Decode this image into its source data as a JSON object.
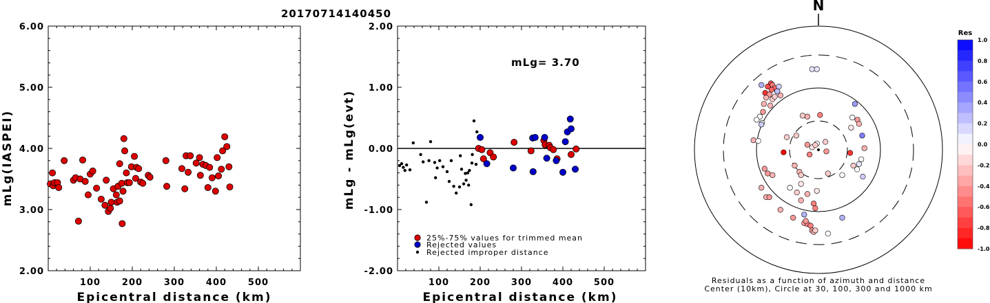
{
  "title": "20170714140450",
  "colors": {
    "red": "#dd0000",
    "blue": "#0000cc",
    "black": "#000000"
  },
  "chart_data": [
    {
      "type": "scatter",
      "xlabel": "Epicentral distance (km)",
      "ylabel": "mLg(IASPEI)",
      "xlim": [
        0,
        600
      ],
      "ylim": [
        2.0,
        6.0
      ],
      "xticks": [
        "100",
        "200",
        "300",
        "400",
        "500"
      ],
      "yticks": [
        "2.00",
        "3.00",
        "4.00",
        "5.00",
        "6.00"
      ],
      "series": [
        {
          "color": "red",
          "points": [
            [
              5,
              3.42
            ],
            [
              10,
              3.6
            ],
            [
              12,
              3.39
            ],
            [
              15,
              3.44
            ],
            [
              22,
              3.44
            ],
            [
              25,
              3.36
            ],
            [
              38,
              3.8
            ],
            [
              60,
              3.48
            ],
            [
              65,
              3.52
            ],
            [
              72,
              2.81
            ],
            [
              76,
              3.5
            ],
            [
              82,
              3.81
            ],
            [
              88,
              3.46
            ],
            [
              95,
              3.24
            ],
            [
              100,
              3.58
            ],
            [
              106,
              3.63
            ],
            [
              115,
              3.35
            ],
            [
              126,
              3.17
            ],
            [
              135,
              3.07
            ],
            [
              138,
              3.48
            ],
            [
              143,
              2.97
            ],
            [
              148,
              3.02
            ],
            [
              150,
              3.12
            ],
            [
              155,
              3.34
            ],
            [
              162,
              3.24
            ],
            [
              164,
              3.12
            ],
            [
              166,
              3.38
            ],
            [
              170,
              3.75
            ],
            [
              170,
              3.14
            ],
            [
              175,
              3.43
            ],
            [
              176,
              2.77
            ],
            [
              178,
              3.3
            ],
            [
              180,
              4.16
            ],
            [
              182,
              3.96
            ],
            [
              186,
              3.6
            ],
            [
              188,
              3.44
            ],
            [
              193,
              3.44
            ],
            [
              198,
              3.7
            ],
            [
              205,
              3.87
            ],
            [
              208,
              3.51
            ],
            [
              210,
              3.69
            ],
            [
              215,
              3.67
            ],
            [
              220,
              3.45
            ],
            [
              225,
              3.43
            ],
            [
              238,
              3.56
            ],
            [
              242,
              3.53
            ],
            [
              280,
              3.8
            ],
            [
              282,
              3.38
            ],
            [
              318,
              3.67
            ],
            [
              325,
              3.34
            ],
            [
              328,
              3.88
            ],
            [
              333,
              3.61
            ],
            [
              338,
              3.88
            ],
            [
              352,
              3.76
            ],
            [
              360,
              3.85
            ],
            [
              362,
              3.56
            ],
            [
              368,
              3.74
            ],
            [
              375,
              3.72
            ],
            [
              380,
              3.36
            ],
            [
              384,
              3.69
            ],
            [
              390,
              3.52
            ],
            [
              398,
              3.3
            ],
            [
              402,
              3.85
            ],
            [
              405,
              3.55
            ],
            [
              412,
              3.66
            ],
            [
              415,
              3.96
            ],
            [
              420,
              4.19
            ],
            [
              425,
              4.03
            ],
            [
              430,
              3.7
            ],
            [
              432,
              3.37
            ]
          ]
        }
      ]
    },
    {
      "type": "scatter",
      "xlabel": "Epicentral distance (km)",
      "ylabel": "mLg - mLg(evt)",
      "xlim": [
        0,
        600
      ],
      "ylim": [
        -2.0,
        2.0
      ],
      "xticks": [
        "100",
        "200",
        "300",
        "400",
        "500"
      ],
      "yticks": [
        "-2.00",
        "-1.00",
        "0.00",
        "1.00",
        "2.00"
      ],
      "annotation": "mLg= 3.70",
      "legend": [
        "25%-75% values for trimmed mean",
        "Rejected values",
        "Rejected improper distance"
      ],
      "legend_position": "bottom-center",
      "series": [
        {
          "name": "25%-75% values for trimmed mean",
          "color": "red",
          "points": [
            [
              196,
              0.0
            ],
            [
              204,
              -0.02
            ],
            [
              208,
              -0.17
            ],
            [
              224,
              -0.07
            ],
            [
              232,
              -0.14
            ],
            [
              282,
              0.1
            ],
            [
              323,
              -0.04
            ],
            [
              354,
              0.13
            ],
            [
              357,
              0.06
            ],
            [
              367,
              0.05
            ],
            [
              370,
              0.01
            ],
            [
              377,
              -0.02
            ],
            [
              386,
              -0.17
            ],
            [
              420,
              -0.1
            ],
            [
              432,
              -0.01
            ]
          ]
        },
        {
          "name": "Rejected values",
          "color": "blue",
          "points": [
            [
              200,
              0.18
            ],
            [
              216,
              -0.25
            ],
            [
              280,
              -0.32
            ],
            [
              327,
              0.17
            ],
            [
              328,
              -0.38
            ],
            [
              333,
              0.18
            ],
            [
              356,
              0.18
            ],
            [
              361,
              -0.16
            ],
            [
              384,
              -0.2
            ],
            [
              400,
              -0.39
            ],
            [
              406,
              0.11
            ],
            [
              411,
              0.27
            ],
            [
              418,
              0.48
            ],
            [
              420,
              0.32
            ],
            [
              430,
              -0.34
            ]
          ]
        },
        {
          "name": "Rejected improper distance",
          "color": "black",
          "points": [
            [
              5,
              -0.28
            ],
            [
              10,
              -0.25
            ],
            [
              14,
              -0.31
            ],
            [
              18,
              -0.36
            ],
            [
              22,
              -0.27
            ],
            [
              30,
              -0.35
            ],
            [
              38,
              0.09
            ],
            [
              56,
              -0.1
            ],
            [
              62,
              -0.22
            ],
            [
              70,
              -0.88
            ],
            [
              76,
              -0.2
            ],
            [
              80,
              0.11
            ],
            [
              90,
              -0.23
            ],
            [
              92,
              -0.48
            ],
            [
              96,
              -0.32
            ],
            [
              102,
              -0.2
            ],
            [
              110,
              -0.3
            ],
            [
              120,
              -0.38
            ],
            [
              125,
              -0.54
            ],
            [
              130,
              -0.2
            ],
            [
              136,
              -0.62
            ],
            [
              142,
              -0.73
            ],
            [
              150,
              -0.63
            ],
            [
              152,
              -0.12
            ],
            [
              155,
              -0.34
            ],
            [
              160,
              -0.58
            ],
            [
              164,
              -0.41
            ],
            [
              166,
              -0.52
            ],
            [
              170,
              -0.4
            ],
            [
              172,
              -0.6
            ],
            [
              174,
              -0.36
            ],
            [
              178,
              -0.92
            ],
            [
              180,
              -0.24
            ],
            [
              181,
              -0.1
            ],
            [
              185,
              0.45
            ],
            [
              190,
              -0.26
            ],
            [
              192,
              0.27
            ]
          ]
        }
      ]
    },
    {
      "type": "scatter",
      "title": "N",
      "caption": [
        "Residuals as a function of azimuth and distance",
        "Center (10km), Circle at 30, 100, 300 and 1000 km"
      ],
      "colorbar": {
        "title": "Res",
        "ticks": [
          "1.0",
          "0.8",
          "0.6",
          "0.4",
          "0.2",
          "0.0",
          "-0.2",
          "-0.4",
          "-0.6",
          "-0.8",
          "-1.0"
        ],
        "range": [
          -1.0,
          1.0
        ]
      },
      "points_xy_km_and_residual": [
        [
          -20,
          8,
          -0.1
        ],
        [
          -5,
          20,
          0.0
        ],
        [
          25,
          -5,
          -0.4
        ],
        [
          -10,
          15,
          -0.2
        ],
        [
          -28,
          -15,
          -0.5
        ],
        [
          -35,
          16,
          -0.4
        ],
        [
          22,
          25,
          -0.2
        ],
        [
          -70,
          45,
          -0.2
        ],
        [
          -35,
          105,
          -0.3
        ],
        [
          5,
          110,
          -0.5
        ],
        [
          -100,
          40,
          -0.2
        ],
        [
          -50,
          108,
          -0.2
        ],
        [
          -110,
          -8,
          -1.0
        ],
        [
          -55,
          -108,
          -0.1
        ],
        [
          30,
          -75,
          -0.2
        ],
        [
          -5,
          -130,
          -0.1
        ],
        [
          -35,
          -140,
          -0.3
        ],
        [
          -15,
          -170,
          -0.5
        ],
        [
          -10,
          -185,
          -0.5
        ],
        [
          -55,
          -160,
          -0.3
        ],
        [
          -68,
          -135,
          -0.2
        ],
        [
          -90,
          -120,
          0.0
        ],
        [
          -75,
          -50,
          -0.3
        ],
        [
          -60,
          -70,
          -0.3
        ],
        [
          -55,
          -80,
          -0.2
        ],
        [
          -20,
          255,
          0.1
        ],
        [
          -5,
          255,
          0.1
        ],
        [
          -150,
          210,
          -0.7
        ],
        [
          -160,
          200,
          -0.7
        ],
        [
          -145,
          205,
          -0.5
        ],
        [
          -168,
          180,
          -0.8
        ],
        [
          -138,
          195,
          -0.6
        ],
        [
          -148,
          190,
          -0.6
        ],
        [
          -130,
          185,
          -0.3
        ],
        [
          -155,
          175,
          -0.4
        ],
        [
          -165,
          165,
          -0.3
        ],
        [
          -172,
          145,
          -0.3
        ],
        [
          -145,
          160,
          -0.2
        ],
        [
          -120,
          172,
          -0.3
        ],
        [
          -138,
          168,
          -0.2
        ],
        [
          -152,
          140,
          -0.3
        ],
        [
          -180,
          205,
          0.3
        ],
        [
          -125,
          200,
          0.2
        ],
        [
          -130,
          185,
          0.25
        ],
        [
          -175,
          120,
          -0.4
        ],
        [
          -185,
          105,
          0.0
        ],
        [
          -178,
          85,
          0.0
        ],
        [
          -180,
          80,
          0.2
        ],
        [
          -195,
          95,
          0.0
        ],
        [
          -205,
          30,
          -0.3
        ],
        [
          -190,
          28,
          0.0
        ],
        [
          -170,
          -60,
          -0.4
        ],
        [
          -160,
          -75,
          -0.4
        ],
        [
          -145,
          -80,
          -0.3
        ],
        [
          -180,
          -120,
          -0.3
        ],
        [
          -165,
          -150,
          -0.3
        ],
        [
          -155,
          -150,
          -0.4
        ],
        [
          -120,
          -190,
          -0.3
        ],
        [
          -80,
          -215,
          -0.4
        ],
        [
          -45,
          -232,
          -0.4
        ],
        [
          -35,
          -235,
          -0.5
        ],
        [
          -25,
          -240,
          -0.5
        ],
        [
          -20,
          -255,
          -0.4
        ],
        [
          -15,
          -260,
          -0.3
        ],
        [
          -10,
          -255,
          -0.2
        ],
        [
          -40,
          -225,
          -0.4
        ],
        [
          -45,
          -205,
          0.3
        ],
        [
          30,
          -265,
          0.0
        ],
        [
          75,
          -215,
          0.3
        ],
        [
          115,
          145,
          0.4
        ],
        [
          107,
          102,
          0.0
        ],
        [
          123,
          95,
          -0.4
        ],
        [
          128,
          82,
          -0.3
        ],
        [
          103,
          70,
          -0.1
        ],
        [
          145,
          5,
          -0.3
        ],
        [
          110,
          -50,
          -0.2
        ],
        [
          128,
          -45,
          0.1
        ],
        [
          122,
          -62,
          0.0
        ],
        [
          135,
          -30,
          0.0
        ],
        [
          140,
          -85,
          0.2
        ],
        [
          138,
          45,
          0.5
        ],
        [
          100,
          -10,
          -0.8
        ],
        [
          75,
          -80,
          0.0
        ]
      ]
    }
  ]
}
